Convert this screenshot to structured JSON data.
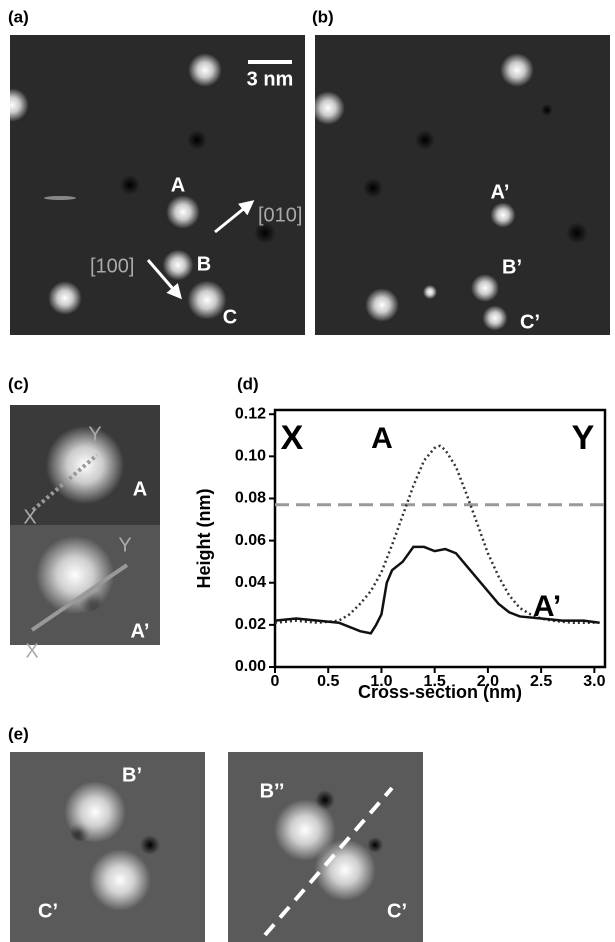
{
  "panels": {
    "a": {
      "label": "(a)",
      "scale_bar": "3 nm",
      "annotations": [
        "A",
        "[010]",
        "B",
        "[100]",
        "C"
      ]
    },
    "b": {
      "label": "(b)",
      "annotations": [
        "A’",
        "B’",
        "C’"
      ]
    },
    "c": {
      "label": "(c)",
      "annotations": [
        "Y",
        "X",
        "A",
        "Y",
        "X",
        "A’"
      ]
    },
    "d": {
      "label": "(d)"
    },
    "e": {
      "label": "(e)",
      "annotations": [
        "B’",
        "C’",
        "B’’",
        "C’"
      ]
    }
  },
  "chart_data": {
    "type": "line",
    "xlabel": "Cross-section (nm)",
    "ylabel": "Height (nm)",
    "annotations": [
      "X",
      "Y"
    ],
    "xlim": [
      0,
      3.1
    ],
    "ylim": [
      0,
      0.122
    ],
    "xticks": [
      0,
      0.5,
      {
        "value": 1,
        "label": "1.0"
      },
      1.5,
      {
        "value": 2,
        "label": "2.0"
      },
      2.5,
      {
        "value": 3,
        "label": "3.0"
      }
    ],
    "yticks": [
      {
        "value": 0,
        "label": "0.00"
      },
      0.02,
      0.04,
      0.06,
      0.08,
      {
        "value": 0.1,
        "label": "0.10"
      },
      0.12
    ],
    "reference_line": {
      "value": 0.077,
      "color": "#999999",
      "style": "dashed"
    },
    "series": [
      {
        "name": "A",
        "color": "#333333",
        "style": "dotted",
        "x": [
          0,
          0.2,
          0.4,
          0.6,
          0.7,
          0.8,
          0.9,
          1.0,
          1.1,
          1.2,
          1.3,
          1.4,
          1.5,
          1.55,
          1.6,
          1.7,
          1.8,
          1.9,
          2.0,
          2.1,
          2.2,
          2.3,
          2.4,
          2.5,
          2.6,
          2.8,
          3.0
        ],
        "values": [
          0.021,
          0.022,
          0.021,
          0.022,
          0.025,
          0.03,
          0.036,
          0.045,
          0.058,
          0.072,
          0.086,
          0.098,
          0.104,
          0.105,
          0.103,
          0.095,
          0.082,
          0.068,
          0.054,
          0.043,
          0.034,
          0.028,
          0.025,
          0.023,
          0.022,
          0.021,
          0.021
        ]
      },
      {
        "name": "A’",
        "color": "#111111",
        "style": "solid",
        "x": [
          0,
          0.2,
          0.4,
          0.6,
          0.8,
          0.9,
          0.95,
          1.0,
          1.05,
          1.1,
          1.2,
          1.3,
          1.4,
          1.5,
          1.6,
          1.7,
          1.8,
          1.9,
          2.0,
          2.1,
          2.2,
          2.3,
          2.5,
          2.7,
          2.9,
          3.05
        ],
        "values": [
          0.022,
          0.023,
          0.022,
          0.021,
          0.017,
          0.016,
          0.02,
          0.025,
          0.04,
          0.046,
          0.05,
          0.057,
          0.057,
          0.055,
          0.056,
          0.054,
          0.048,
          0.042,
          0.036,
          0.03,
          0.026,
          0.024,
          0.023,
          0.022,
          0.022,
          0.021
        ]
      }
    ]
  }
}
